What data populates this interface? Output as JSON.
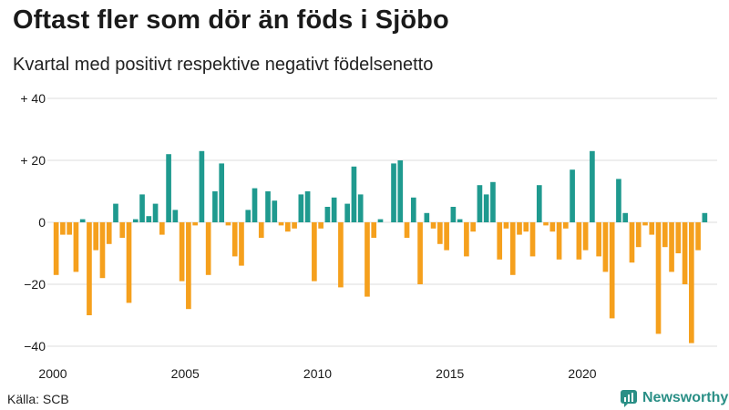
{
  "header": {
    "title": "Oftast fler som dör än föds i Sjöbo",
    "subtitle": "Kvartal med positivt respektive negativt födelsenetto"
  },
  "footer": {
    "source": "Källa: SCB",
    "brand": "Newsworthy",
    "brand_icon": "newsworthy-logo-icon"
  },
  "colors": {
    "positive": "#1f9a8f",
    "negative": "#f5a01d",
    "grid": "#dddddd",
    "brand": "#2a8f86"
  },
  "chart_data": {
    "type": "bar",
    "title": "Oftast fler som dör än föds i Sjöbo",
    "subtitle": "Kvartal med positivt respektive negativt födelsenetto",
    "xlabel": "",
    "ylabel": "",
    "ylim": [
      -40,
      40
    ],
    "yticks": [
      -40,
      -20,
      0,
      20,
      40
    ],
    "ytick_labels": [
      "−40",
      "−20",
      "0",
      "+ 20",
      "+ 40"
    ],
    "xticks": [
      2000,
      2005,
      2010,
      2015,
      2020
    ],
    "grid": true,
    "start_year": 2000,
    "periods_per_year": 4,
    "values": [
      -17,
      -4,
      -4,
      -16,
      1,
      -30,
      -9,
      -18,
      -7,
      6,
      -5,
      -26,
      1,
      9,
      2,
      6,
      -4,
      22,
      4,
      -19,
      -28,
      -1,
      23,
      -17,
      10,
      19,
      -1,
      -11,
      -14,
      4,
      11,
      -5,
      10,
      7,
      -1,
      -3,
      -2,
      9,
      10,
      -19,
      -2,
      5,
      8,
      -21,
      6,
      18,
      9,
      -24,
      -5,
      1,
      0,
      19,
      20,
      -5,
      8,
      -20,
      3,
      -2,
      -7,
      -9,
      5,
      1,
      -11,
      -3,
      12,
      9,
      13,
      -12,
      -2,
      -17,
      -4,
      -3,
      -11,
      12,
      -1,
      -3,
      -12,
      -2,
      17,
      -12,
      -9,
      23,
      -11,
      -16,
      -31,
      14,
      3,
      -13,
      -8,
      -1,
      -4,
      -36,
      -8,
      -16,
      -10,
      -20,
      -39,
      -9,
      3
    ]
  }
}
